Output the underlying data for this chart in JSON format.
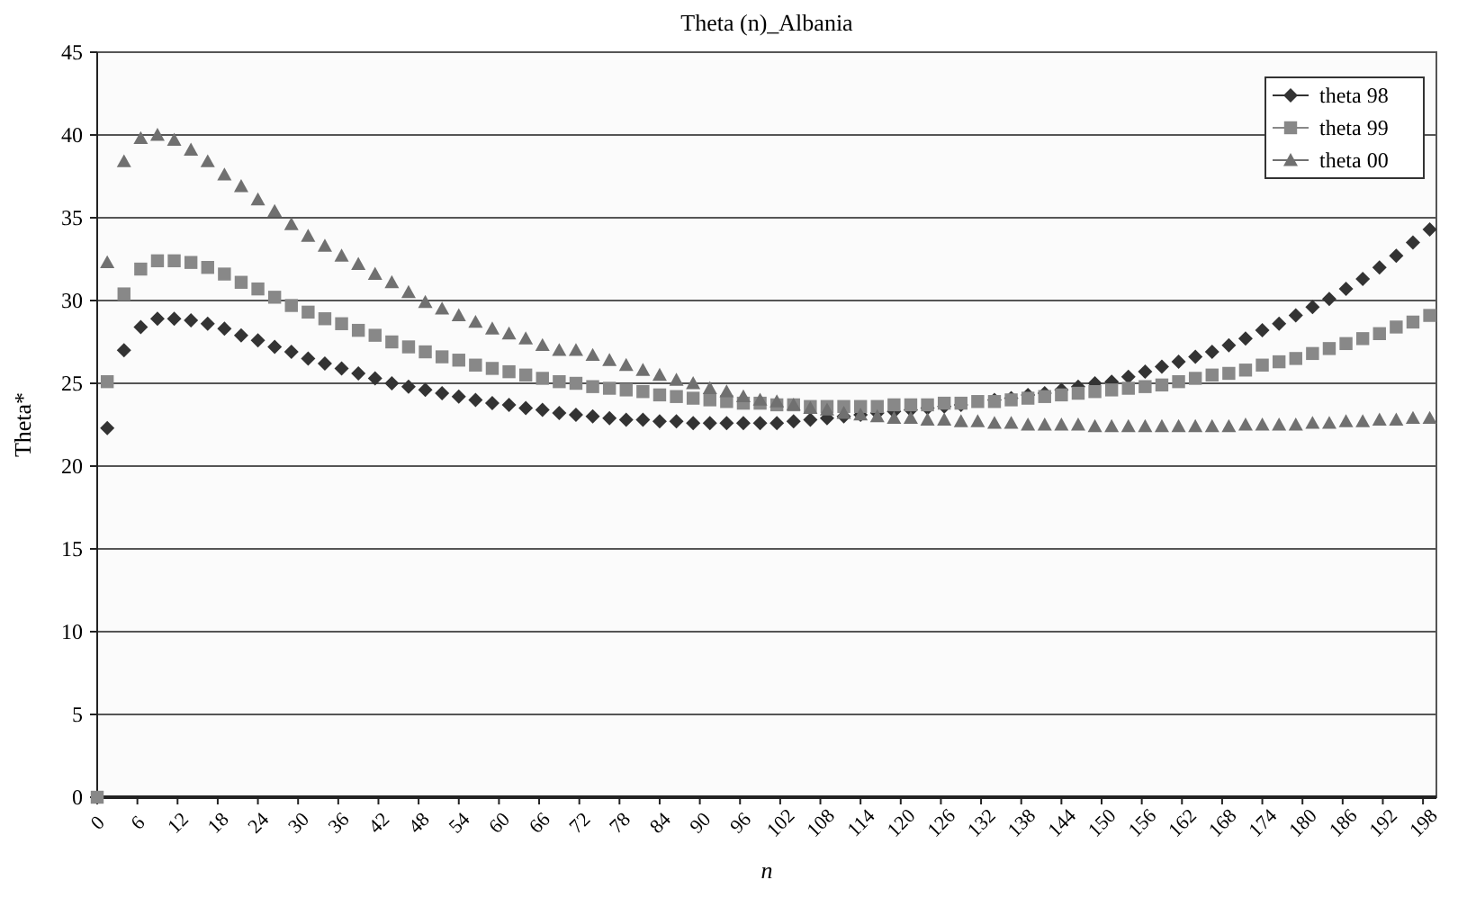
{
  "chart_data": {
    "type": "scatter",
    "title": "Theta (n)_Albania",
    "xlabel": "n",
    "ylabel": "Theta*",
    "x": [
      1.5,
      4,
      6.5,
      9,
      11.5,
      14,
      16.5,
      19,
      21.5,
      24,
      26.5,
      29,
      31.5,
      34,
      36.5,
      39,
      41.5,
      44,
      46.5,
      49,
      51.5,
      54,
      56.5,
      59,
      61.5,
      64,
      66.5,
      69,
      71.5,
      74,
      76.5,
      79,
      81.5,
      84,
      86.5,
      89,
      91.5,
      94,
      96.5,
      99,
      101.5,
      104,
      106.5,
      109,
      111.5,
      114,
      116.5,
      119,
      121.5,
      124,
      126.5,
      129,
      131.5,
      134,
      136.5,
      139,
      141.5,
      144,
      146.5,
      149,
      151.5,
      154,
      156.5,
      159,
      161.5,
      164,
      166.5,
      169,
      171.5,
      174,
      176.5,
      179,
      181.5,
      184,
      186.5,
      189,
      191.5,
      194,
      196.5,
      199
    ],
    "xlim": [
      0,
      200
    ],
    "xticks": [
      0,
      6,
      12,
      18,
      24,
      30,
      36,
      42,
      48,
      54,
      60,
      66,
      72,
      78,
      84,
      90,
      96,
      102,
      108,
      114,
      120,
      126,
      132,
      138,
      144,
      150,
      156,
      162,
      168,
      174,
      180,
      186,
      192,
      198
    ],
    "ylim": [
      0,
      45
    ],
    "yticks": [
      0,
      5,
      10,
      15,
      20,
      25,
      30,
      35,
      40,
      45
    ],
    "grid": "y",
    "legend": "top right",
    "series": [
      {
        "name": "theta 98",
        "color": "#333333",
        "marker": "diamond",
        "values": [
          22.3,
          27.0,
          28.4,
          28.9,
          28.9,
          28.8,
          28.6,
          28.3,
          27.9,
          27.6,
          27.2,
          26.9,
          26.5,
          26.2,
          25.9,
          25.6,
          25.3,
          25.0,
          24.8,
          24.6,
          24.4,
          24.2,
          24.0,
          23.8,
          23.7,
          23.5,
          23.4,
          23.2,
          23.1,
          23.0,
          22.9,
          22.8,
          22.8,
          22.7,
          22.7,
          22.6,
          22.6,
          22.6,
          22.6,
          22.6,
          22.6,
          22.7,
          22.8,
          22.9,
          23.0,
          23.1,
          23.2,
          23.3,
          23.4,
          23.5,
          23.6,
          23.7,
          null,
          24.0,
          24.1,
          24.3,
          24.4,
          24.6,
          24.8,
          25.0,
          25.1,
          25.4,
          25.7,
          26.0,
          26.3,
          26.6,
          26.9,
          27.3,
          27.7,
          28.2,
          28.6,
          29.1,
          29.6,
          30.1,
          30.7,
          31.3,
          32.0,
          32.7,
          33.5,
          34.3
        ]
      },
      {
        "name": "theta 99",
        "color": "#888888",
        "marker": "square",
        "x": [
          0,
          1.5,
          4,
          6.5,
          9,
          11.5,
          14,
          16.5,
          19,
          21.5,
          24,
          26.5,
          29,
          31.5,
          34,
          36.5,
          39,
          41.5,
          44,
          46.5,
          49,
          51.5,
          54,
          56.5,
          59,
          61.5,
          64,
          66.5,
          69,
          71.5,
          74,
          76.5,
          79,
          81.5,
          84,
          86.5,
          89,
          91.5,
          94,
          96.5,
          99,
          101.5,
          104,
          106.5,
          109,
          111.5,
          114,
          116.5,
          119,
          121.5,
          124,
          126.5,
          129,
          131.5,
          134,
          136.5,
          139,
          141.5,
          144,
          146.5,
          149,
          151.5,
          154,
          156.5,
          159,
          161.5,
          164,
          166.5,
          169,
          171.5,
          174,
          176.5,
          179,
          181.5,
          184,
          186.5,
          189,
          191.5,
          194,
          196.5,
          199
        ],
        "values": [
          0,
          25.1,
          30.4,
          31.9,
          32.4,
          32.4,
          32.3,
          32.0,
          31.6,
          31.1,
          30.7,
          30.2,
          29.7,
          29.3,
          28.9,
          28.6,
          28.2,
          27.9,
          27.5,
          27.2,
          26.9,
          26.6,
          26.4,
          26.1,
          25.9,
          25.7,
          25.5,
          25.3,
          25.1,
          25.0,
          24.8,
          24.7,
          24.6,
          24.5,
          24.3,
          24.2,
          24.1,
          24.0,
          23.9,
          23.8,
          23.8,
          23.7,
          23.7,
          23.6,
          23.6,
          23.6,
          23.6,
          23.6,
          23.7,
          23.7,
          23.7,
          23.8,
          23.8,
          23.9,
          23.9,
          24.0,
          24.1,
          24.2,
          24.3,
          24.4,
          24.5,
          24.6,
          24.7,
          24.8,
          24.9,
          25.1,
          25.3,
          25.5,
          25.6,
          25.8,
          26.1,
          26.3,
          26.5,
          26.8,
          27.1,
          27.4,
          27.7,
          28.0,
          28.4,
          28.7,
          29.1
        ]
      },
      {
        "name": "theta 00",
        "color": "#707070",
        "marker": "triangle",
        "values": [
          32.3,
          38.4,
          39.8,
          40.0,
          39.7,
          39.1,
          38.4,
          37.6,
          36.9,
          36.1,
          35.4,
          34.6,
          33.9,
          33.3,
          32.7,
          32.2,
          31.6,
          31.1,
          30.5,
          29.9,
          29.5,
          29.1,
          28.7,
          28.3,
          28.0,
          27.7,
          27.3,
          27.0,
          27.0,
          26.7,
          26.4,
          26.1,
          25.8,
          25.5,
          25.2,
          25.0,
          24.7,
          24.5,
          24.2,
          24.0,
          23.9,
          23.7,
          23.5,
          23.4,
          23.2,
          23.1,
          23.0,
          22.9,
          22.9,
          22.8,
          22.8,
          22.7,
          22.7,
          22.6,
          22.6,
          22.5,
          22.5,
          22.5,
          22.5,
          22.4,
          22.4,
          22.4,
          22.4,
          22.4,
          22.4,
          22.4,
          22.4,
          22.4,
          22.5,
          22.5,
          22.5,
          22.5,
          22.6,
          22.6,
          22.7,
          22.7,
          22.8,
          22.8,
          22.9,
          22.9
        ]
      }
    ]
  }
}
